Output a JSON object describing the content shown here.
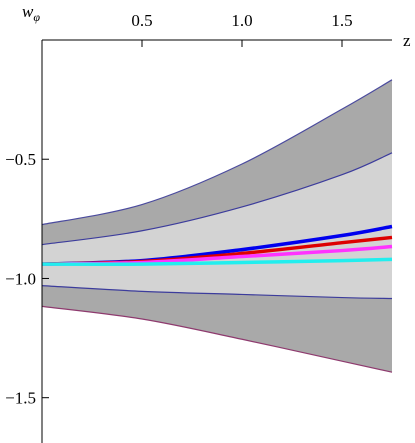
{
  "chart_data": {
    "type": "line",
    "xlabel": "z",
    "ylabel": "w",
    "ylabel_sub": "φ",
    "x": [
      0,
      0.5,
      1.0,
      1.5,
      1.75
    ],
    "xlim": [
      0,
      1.75
    ],
    "ylim": [
      -1.69,
      0
    ],
    "xticks": [
      0.5,
      {
        "value": 1,
        "label": "1.0"
      },
      1.5
    ],
    "yticks": [
      {
        "value": -0.5,
        "label": "−0.5"
      },
      {
        "value": -1,
        "label": "−1.0"
      },
      {
        "value": -1.5,
        "label": "−1.5"
      }
    ],
    "bands": [
      {
        "color": "#a9a9a9",
        "upper_color": "#4b4b9e",
        "lower_color": "#8e3a6e",
        "upper": [
          -0.774,
          -0.69,
          -0.52,
          -0.29,
          -0.167
        ],
        "lower": [
          -1.117,
          -1.17,
          -1.255,
          -1.347,
          -1.393
        ]
      },
      {
        "color": "#d3d3d3",
        "upper_color": "#3c3c9c",
        "lower_color": "#3c3c9c",
        "upper": [
          -0.858,
          -0.8,
          -0.7,
          -0.565,
          -0.473
        ],
        "lower": [
          -1.03,
          -1.054,
          -1.067,
          -1.08,
          -1.084
        ]
      }
    ],
    "series": [
      {
        "color": "#0000ee",
        "values": [
          -0.94,
          -0.925,
          -0.879,
          -0.82,
          -0.782
        ]
      },
      {
        "color": "#dd0000",
        "values": [
          -0.94,
          -0.929,
          -0.895,
          -0.85,
          -0.828
        ]
      },
      {
        "color": "#ff33ff",
        "values": [
          -0.94,
          -0.933,
          -0.908,
          -0.883,
          -0.866
        ]
      },
      {
        "color": "#22eeee",
        "values": [
          -0.94,
          -0.94,
          -0.933,
          -0.925,
          -0.92
        ]
      }
    ]
  }
}
